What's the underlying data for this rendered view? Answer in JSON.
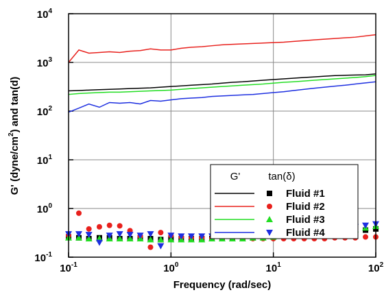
{
  "chart_data": {
    "type": "line-scatter",
    "x_label": "Frequency (rad/sec)",
    "y_label": {
      "before": "G' (dyne/cm",
      "superscript": "2",
      "after": ") and tan(d)"
    },
    "log_x": true,
    "log_y": true,
    "grid": true,
    "xlim": [
      0.1,
      100
    ],
    "ylim": [
      0.1,
      10000
    ],
    "xticks": [
      {
        "value": 0.1,
        "label": "10",
        "exponent": "-1"
      },
      {
        "value": 1,
        "label": "10",
        "exponent": "0"
      },
      {
        "value": 10,
        "label": "10",
        "exponent": "1"
      },
      {
        "value": 100,
        "label": "10",
        "exponent": "2"
      }
    ],
    "yticks": [
      {
        "value": 0.1,
        "label": "10",
        "exponent": "-1"
      },
      {
        "value": 1,
        "label": "10",
        "exponent": "0"
      },
      {
        "value": 10,
        "label": "10",
        "exponent": "1"
      },
      {
        "value": 100,
        "label": "10",
        "exponent": "2"
      },
      {
        "value": 1000,
        "label": "10",
        "exponent": "3"
      },
      {
        "value": 10000,
        "label": "10",
        "exponent": "4"
      }
    ],
    "legend_headers": [
      "G'",
      "tan(δ)"
    ],
    "legend_position": "right",
    "x": [
      0.1,
      0.126,
      0.158,
      0.2,
      0.251,
      0.316,
      0.398,
      0.501,
      0.631,
      0.794,
      1,
      1.26,
      1.58,
      2,
      2.51,
      3.16,
      3.98,
      5.01,
      6.31,
      7.94,
      10,
      12.6,
      15.8,
      20,
      25.1,
      31.6,
      39.8,
      50.1,
      63.1,
      79.4,
      100
    ],
    "series": [
      {
        "name": "Fluid #1",
        "color": "#000000",
        "marker": "square",
        "values": [
          260,
          265,
          270,
          275,
          280,
          285,
          290,
          295,
          300,
          310,
          320,
          330,
          340,
          350,
          360,
          375,
          390,
          400,
          415,
          430,
          445,
          460,
          475,
          490,
          505,
          520,
          535,
          545,
          550,
          555,
          580
        ],
        "tan_values": [
          0.26,
          0.25,
          0.24,
          0.25,
          0.25,
          0.24,
          0.24,
          0.25,
          0.24,
          0.23,
          0.24,
          0.24,
          0.24,
          0.24,
          0.24,
          0.25,
          0.25,
          0.25,
          0.25,
          0.26,
          0.26,
          0.27,
          0.27,
          0.28,
          0.29,
          0.3,
          0.31,
          0.32,
          0.34,
          0.36,
          0.38
        ]
      },
      {
        "name": "Fluid #2",
        "color": "#e8201c",
        "marker": "circle",
        "values": [
          1000,
          1800,
          1550,
          1600,
          1650,
          1600,
          1700,
          1750,
          1900,
          1800,
          1800,
          1950,
          2050,
          2100,
          2200,
          2300,
          2350,
          2400,
          2450,
          2500,
          2550,
          2600,
          2700,
          2800,
          2900,
          3000,
          3100,
          3200,
          3300,
          3500,
          3700
        ],
        "tan_values": [
          0.28,
          0.8,
          0.38,
          0.42,
          0.45,
          0.44,
          0.35,
          0.27,
          0.16,
          0.32,
          0.28,
          0.26,
          0.25,
          0.25,
          0.24,
          0.24,
          0.24,
          0.24,
          0.24,
          0.24,
          0.24,
          0.24,
          0.24,
          0.24,
          0.24,
          0.24,
          0.25,
          0.25,
          0.25,
          0.26,
          0.26
        ]
      },
      {
        "name": "Fluid #3",
        "color": "#22dd22",
        "marker": "triangle-up",
        "values": [
          220,
          230,
          235,
          240,
          245,
          245,
          250,
          255,
          260,
          265,
          270,
          280,
          290,
          300,
          310,
          320,
          330,
          340,
          350,
          360,
          375,
          390,
          400,
          415,
          430,
          445,
          460,
          475,
          490,
          510,
          540
        ],
        "tan_values": [
          0.25,
          0.25,
          0.24,
          0.24,
          0.24,
          0.24,
          0.24,
          0.24,
          0.23,
          0.23,
          0.23,
          0.23,
          0.23,
          0.23,
          0.24,
          0.24,
          0.24,
          0.24,
          0.25,
          0.25,
          0.26,
          0.27,
          0.28,
          0.29,
          0.3,
          0.32,
          0.33,
          0.35,
          0.37,
          0.4,
          0.43
        ]
      },
      {
        "name": "Fluid #4",
        "color": "#1c2ee0",
        "marker": "triangle-down",
        "values": [
          95,
          115,
          140,
          120,
          150,
          145,
          150,
          140,
          165,
          160,
          170,
          180,
          185,
          190,
          200,
          205,
          210,
          215,
          220,
          230,
          240,
          250,
          265,
          280,
          295,
          310,
          325,
          340,
          360,
          380,
          400
        ],
        "tan_values": [
          0.3,
          0.3,
          0.29,
          0.2,
          0.28,
          0.3,
          0.29,
          0.28,
          0.3,
          0.17,
          0.28,
          0.27,
          0.27,
          0.27,
          0.27,
          0.28,
          0.28,
          0.28,
          0.29,
          0.29,
          0.3,
          0.31,
          0.32,
          0.33,
          0.34,
          0.36,
          0.38,
          0.4,
          0.42,
          0.45,
          0.48
        ]
      }
    ]
  }
}
